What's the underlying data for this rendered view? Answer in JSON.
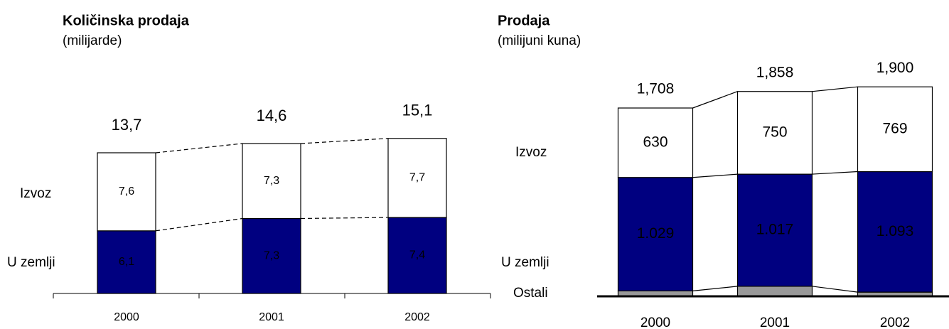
{
  "chart_data": [
    {
      "type": "stacked_bar",
      "title": "Količinska prodaja",
      "subtitle": "(milijarde)",
      "categories": [
        "2000",
        "2001",
        "2002"
      ],
      "series": [
        {
          "name": "U zemlji",
          "color": "#000080",
          "values": [
            6.1,
            7.3,
            7.4
          ],
          "value_labels": [
            "6,1",
            "7,3",
            "7,4"
          ]
        },
        {
          "name": "Izvoz",
          "color": "#ffffff",
          "values": [
            7.6,
            7.3,
            7.7
          ],
          "value_labels": [
            "7,6",
            "7,3",
            "7,7"
          ]
        }
      ],
      "totals": [
        13.7,
        14.6,
        15.1
      ],
      "total_labels": [
        "13,7",
        "14,6",
        "15,1"
      ]
    },
    {
      "type": "stacked_bar",
      "title": "Prodaja",
      "subtitle": "(milijuni kuna)",
      "categories": [
        "2000",
        "2001",
        "2002"
      ],
      "series": [
        {
          "name": "Ostali",
          "color": "#999999",
          "values": [
            49,
            91,
            38
          ]
        },
        {
          "name": "U zemlji",
          "color": "#000080",
          "values": [
            1029,
            1017,
            1093
          ],
          "value_labels": [
            "1.029",
            "1.017",
            "1.093"
          ]
        },
        {
          "name": "Izvoz",
          "color": "#ffffff",
          "values": [
            630,
            750,
            769
          ]
        }
      ],
      "totals": [
        1708,
        1858,
        1900
      ],
      "total_labels": [
        "1,708",
        "1,858",
        "1,900"
      ]
    }
  ]
}
